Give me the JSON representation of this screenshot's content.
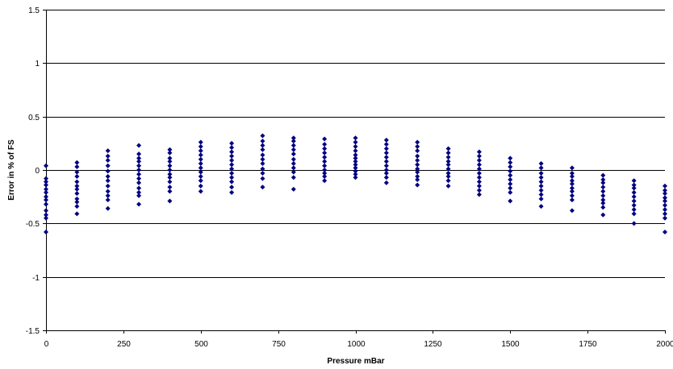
{
  "chart_data": {
    "type": "scatter",
    "title": "",
    "xlabel": "Pressure mBar",
    "ylabel": "Error in % of FS",
    "xlim": [
      0,
      2000
    ],
    "ylim": [
      -1.5,
      1.5
    ],
    "x_ticks": [
      0,
      250,
      500,
      750,
      1000,
      1250,
      1500,
      1750,
      2000
    ],
    "y_ticks": [
      -1.5,
      -1,
      -0.5,
      0,
      0.5,
      1,
      1.5
    ],
    "y_tick_labels": [
      "-1.5",
      "-1",
      "-0.5",
      "0",
      "0.5",
      "1",
      "1.5"
    ],
    "grid": "horizontal major gridlines at -0.5, 0, 0.5, 1, 1.5",
    "marker": "diamond",
    "colors": {
      "marker": "#000080",
      "gridline": "#000000",
      "background": "#ffffff"
    },
    "points": [
      {
        "x": 0,
        "y": [
          0.04,
          -0.08,
          -0.11,
          -0.14,
          -0.18,
          -0.21,
          -0.25,
          -0.28,
          -0.32,
          -0.38,
          -0.42,
          -0.45,
          -0.58
        ]
      },
      {
        "x": 100,
        "y": [
          0.07,
          0.03,
          -0.02,
          -0.06,
          -0.11,
          -0.15,
          -0.18,
          -0.22,
          -0.27,
          -0.3,
          -0.34,
          -0.41
        ]
      },
      {
        "x": 200,
        "y": [
          0.18,
          0.13,
          0.09,
          0.04,
          -0.01,
          -0.06,
          -0.1,
          -0.15,
          -0.2,
          -0.24,
          -0.28,
          -0.36
        ]
      },
      {
        "x": 300,
        "y": [
          0.23,
          0.15,
          0.11,
          0.08,
          0.04,
          0.0,
          -0.04,
          -0.08,
          -0.12,
          -0.17,
          -0.21,
          -0.24,
          -0.32
        ]
      },
      {
        "x": 400,
        "y": [
          0.19,
          0.16,
          0.11,
          0.08,
          0.04,
          0.0,
          -0.04,
          -0.07,
          -0.11,
          -0.16,
          -0.2,
          -0.29
        ]
      },
      {
        "x": 500,
        "y": [
          0.26,
          0.22,
          0.18,
          0.14,
          0.1,
          0.06,
          0.02,
          -0.02,
          -0.06,
          -0.1,
          -0.15,
          -0.2
        ]
      },
      {
        "x": 600,
        "y": [
          0.25,
          0.21,
          0.17,
          0.13,
          0.09,
          0.05,
          0.01,
          -0.03,
          -0.07,
          -0.11,
          -0.16,
          -0.21
        ]
      },
      {
        "x": 700,
        "y": [
          0.32,
          0.27,
          0.23,
          0.19,
          0.14,
          0.1,
          0.06,
          0.01,
          -0.03,
          -0.08,
          -0.16
        ]
      },
      {
        "x": 800,
        "y": [
          0.3,
          0.27,
          0.23,
          0.19,
          0.15,
          0.1,
          0.06,
          0.02,
          -0.02,
          -0.07,
          -0.18
        ]
      },
      {
        "x": 900,
        "y": [
          0.29,
          0.24,
          0.2,
          0.16,
          0.12,
          0.08,
          0.04,
          0.0,
          -0.03,
          -0.06,
          -0.1
        ]
      },
      {
        "x": 1000,
        "y": [
          0.3,
          0.26,
          0.22,
          0.18,
          0.14,
          0.11,
          0.08,
          0.05,
          0.02,
          -0.01,
          -0.04,
          -0.07
        ]
      },
      {
        "x": 1100,
        "y": [
          0.28,
          0.24,
          0.2,
          0.16,
          0.12,
          0.08,
          0.04,
          0.0,
          -0.03,
          -0.07,
          -0.12
        ]
      },
      {
        "x": 1200,
        "y": [
          0.26,
          0.22,
          0.18,
          0.13,
          0.09,
          0.05,
          0.01,
          -0.02,
          -0.06,
          -0.09,
          -0.14
        ]
      },
      {
        "x": 1300,
        "y": [
          0.2,
          0.16,
          0.12,
          0.08,
          0.05,
          0.01,
          -0.03,
          -0.06,
          -0.1,
          -0.15
        ]
      },
      {
        "x": 1400,
        "y": [
          0.17,
          0.13,
          0.09,
          0.05,
          0.01,
          -0.03,
          -0.07,
          -0.11,
          -0.15,
          -0.19,
          -0.23
        ]
      },
      {
        "x": 1500,
        "y": [
          0.11,
          0.07,
          0.03,
          -0.01,
          -0.05,
          -0.09,
          -0.13,
          -0.17,
          -0.21,
          -0.29
        ]
      },
      {
        "x": 1600,
        "y": [
          0.06,
          0.02,
          -0.03,
          -0.07,
          -0.11,
          -0.15,
          -0.19,
          -0.23,
          -0.27,
          -0.34
        ]
      },
      {
        "x": 1700,
        "y": [
          0.02,
          -0.03,
          -0.06,
          -0.1,
          -0.13,
          -0.17,
          -0.2,
          -0.24,
          -0.28,
          -0.38
        ]
      },
      {
        "x": 1800,
        "y": [
          -0.05,
          -0.09,
          -0.12,
          -0.16,
          -0.2,
          -0.24,
          -0.28,
          -0.31,
          -0.35,
          -0.42
        ]
      },
      {
        "x": 1900,
        "y": [
          -0.1,
          -0.14,
          -0.17,
          -0.21,
          -0.25,
          -0.29,
          -0.33,
          -0.37,
          -0.41,
          -0.5
        ]
      },
      {
        "x": 2000,
        "y": [
          -0.15,
          -0.19,
          -0.22,
          -0.26,
          -0.29,
          -0.33,
          -0.37,
          -0.41,
          -0.45,
          -0.58
        ]
      }
    ]
  }
}
